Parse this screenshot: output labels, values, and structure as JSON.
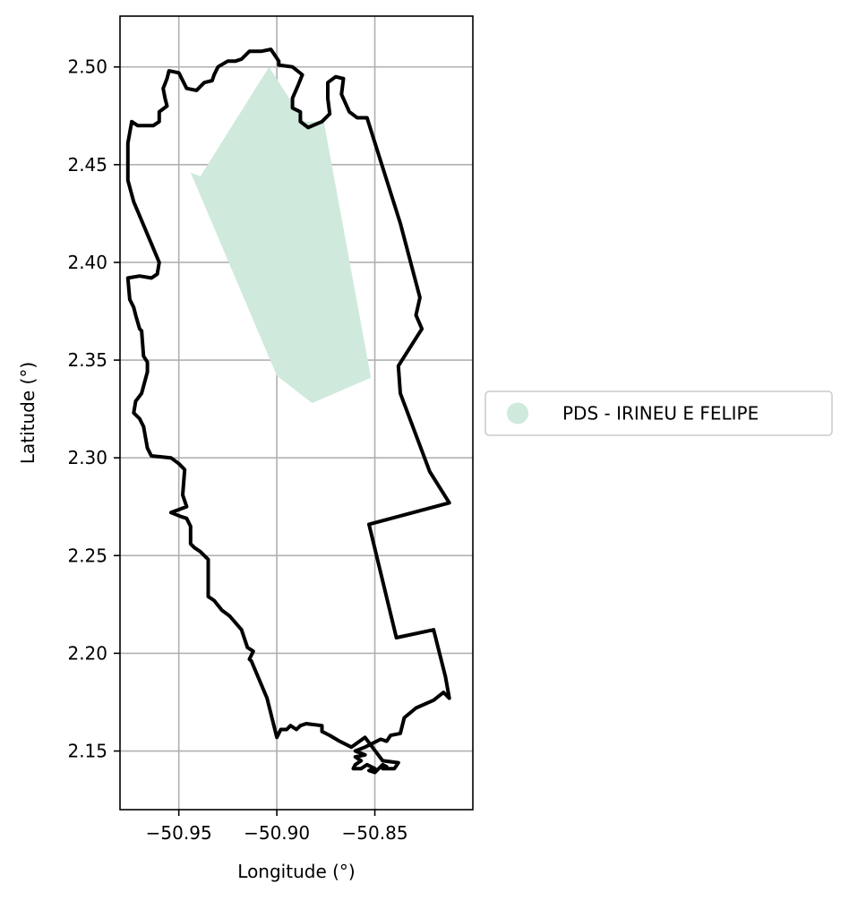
{
  "chart_data": {
    "type": "map",
    "title": "",
    "xlabel": "Longitude (°)",
    "ylabel": "Latitude (°)",
    "xlim": [
      -50.98,
      -50.8
    ],
    "ylim": [
      2.12,
      2.526
    ],
    "grid": true,
    "legend_placement": "center-right, outside plot",
    "x_ticks": [
      {
        "value": -50.95,
        "label": "−50.95"
      },
      {
        "value": -50.9,
        "label": "−50.90"
      },
      {
        "value": -50.85,
        "label": "−50.85"
      }
    ],
    "y_ticks": [
      {
        "value": 2.15,
        "label": "2.15"
      },
      {
        "value": 2.2,
        "label": "2.20"
      },
      {
        "value": 2.25,
        "label": "2.25"
      },
      {
        "value": 2.3,
        "label": "2.30"
      },
      {
        "value": 2.35,
        "label": "2.35"
      },
      {
        "value": 2.4,
        "label": "2.40"
      },
      {
        "value": 2.45,
        "label": "2.45"
      },
      {
        "value": 2.5,
        "label": "2.50"
      }
    ],
    "layers": [
      {
        "name": "PDS - IRINEU E FELIPE",
        "kind": "filled-polygon",
        "color": "#cfeadc",
        "coordinates": [
          [
            -50.904,
            2.5
          ],
          [
            -50.886,
            2.472
          ],
          [
            -50.876,
            2.472
          ],
          [
            -50.852,
            2.341
          ],
          [
            -50.882,
            2.328
          ],
          [
            -50.9,
            2.342
          ],
          [
            -50.944,
            2.446
          ],
          [
            -50.939,
            2.444
          ],
          [
            -50.904,
            2.5
          ]
        ]
      },
      {
        "name": "boundary",
        "kind": "outline",
        "color": "#000000",
        "coordinates": [
          [
            -50.908,
            2.508
          ],
          [
            -50.903,
            2.509
          ],
          [
            -50.899,
            2.503
          ],
          [
            -50.899,
            2.501
          ],
          [
            -50.892,
            2.5
          ],
          [
            -50.887,
            2.496
          ],
          [
            -50.889,
            2.491
          ],
          [
            -50.892,
            2.484
          ],
          [
            -50.892,
            2.479
          ],
          [
            -50.888,
            2.477
          ],
          [
            -50.888,
            2.472
          ],
          [
            -50.884,
            2.469
          ],
          [
            -50.877,
            2.472
          ],
          [
            -50.873,
            2.476
          ],
          [
            -50.874,
            2.484
          ],
          [
            -50.874,
            2.492
          ],
          [
            -50.87,
            2.495
          ],
          [
            -50.866,
            2.494
          ],
          [
            -50.867,
            2.486
          ],
          [
            -50.863,
            2.477
          ],
          [
            -50.859,
            2.474
          ],
          [
            -50.854,
            2.474
          ],
          [
            -50.837,
            2.42
          ],
          [
            -50.827,
            2.382
          ],
          [
            -50.829,
            2.373
          ],
          [
            -50.826,
            2.366
          ],
          [
            -50.838,
            2.347
          ],
          [
            -50.837,
            2.333
          ],
          [
            -50.822,
            2.293
          ],
          [
            -50.812,
            2.277
          ],
          [
            -50.853,
            2.266
          ],
          [
            -50.839,
            2.208
          ],
          [
            -50.82,
            2.212
          ],
          [
            -50.814,
            2.188
          ],
          [
            -50.812,
            2.177
          ],
          [
            -50.815,
            2.18
          ],
          [
            -50.82,
            2.176
          ],
          [
            -50.829,
            2.172
          ],
          [
            -50.835,
            2.167
          ],
          [
            -50.837,
            2.159
          ],
          [
            -50.842,
            2.158
          ],
          [
            -50.844,
            2.155
          ],
          [
            -50.847,
            2.156
          ],
          [
            -50.855,
            2.152
          ],
          [
            -50.86,
            2.15
          ],
          [
            -50.855,
            2.148
          ],
          [
            -50.86,
            2.147
          ],
          [
            -50.857,
            2.145
          ],
          [
            -50.86,
            2.143
          ],
          [
            -50.861,
            2.141
          ],
          [
            -50.857,
            2.141
          ],
          [
            -50.854,
            2.143
          ],
          [
            -50.85,
            2.141
          ],
          [
            -50.853,
            2.14
          ],
          [
            -50.85,
            2.139
          ],
          [
            -50.846,
            2.143
          ],
          [
            -50.844,
            2.142
          ],
          [
            -50.846,
            2.141
          ],
          [
            -50.843,
            2.141
          ],
          [
            -50.84,
            2.141
          ],
          [
            -50.838,
            2.144
          ],
          [
            -50.846,
            2.145
          ],
          [
            -50.849,
            2.149
          ],
          [
            -50.855,
            2.157
          ],
          [
            -50.862,
            2.152
          ],
          [
            -50.868,
            2.155
          ],
          [
            -50.873,
            2.158
          ],
          [
            -50.877,
            2.16
          ],
          [
            -50.877,
            2.163
          ],
          [
            -50.885,
            2.164
          ],
          [
            -50.888,
            2.163
          ],
          [
            -50.89,
            2.161
          ],
          [
            -50.893,
            2.163
          ],
          [
            -50.895,
            2.161
          ],
          [
            -50.898,
            2.161
          ],
          [
            -50.9,
            2.157
          ],
          [
            -50.905,
            2.177
          ],
          [
            -50.913,
            2.196
          ],
          [
            -50.914,
            2.197
          ],
          [
            -50.912,
            2.201
          ],
          [
            -50.915,
            2.203
          ],
          [
            -50.918,
            2.212
          ],
          [
            -50.924,
            2.219
          ],
          [
            -50.928,
            2.222
          ],
          [
            -50.932,
            2.227
          ],
          [
            -50.935,
            2.229
          ],
          [
            -50.935,
            2.248
          ],
          [
            -50.939,
            2.252
          ],
          [
            -50.942,
            2.254
          ],
          [
            -50.944,
            2.256
          ],
          [
            -50.944,
            2.265
          ],
          [
            -50.946,
            2.269
          ],
          [
            -50.949,
            2.27
          ],
          [
            -50.954,
            2.272
          ],
          [
            -50.946,
            2.275
          ],
          [
            -50.948,
            2.281
          ],
          [
            -50.947,
            2.294
          ],
          [
            -50.95,
            2.297
          ],
          [
            -50.954,
            2.3
          ],
          [
            -50.964,
            2.301
          ],
          [
            -50.966,
            2.305
          ],
          [
            -50.968,
            2.316
          ],
          [
            -50.97,
            2.32
          ],
          [
            -50.973,
            2.323
          ],
          [
            -50.972,
            2.329
          ],
          [
            -50.969,
            2.333
          ],
          [
            -50.966,
            2.344
          ],
          [
            -50.966,
            2.349
          ],
          [
            -50.968,
            2.352
          ],
          [
            -50.969,
            2.365
          ],
          [
            -50.97,
            2.366
          ],
          [
            -50.972,
            2.373
          ],
          [
            -50.973,
            2.377
          ],
          [
            -50.975,
            2.381
          ],
          [
            -50.976,
            2.392
          ],
          [
            -50.97,
            2.393
          ],
          [
            -50.964,
            2.392
          ],
          [
            -50.961,
            2.394
          ],
          [
            -50.96,
            2.4
          ],
          [
            -50.965,
            2.412
          ],
          [
            -50.973,
            2.431
          ],
          [
            -50.976,
            2.442
          ],
          [
            -50.976,
            2.461
          ],
          [
            -50.974,
            2.472
          ],
          [
            -50.971,
            2.47
          ],
          [
            -50.963,
            2.47
          ],
          [
            -50.96,
            2.472
          ],
          [
            -50.96,
            2.477
          ],
          [
            -50.956,
            2.48
          ],
          [
            -50.957,
            2.484
          ],
          [
            -50.958,
            2.489
          ],
          [
            -50.956,
            2.494
          ],
          [
            -50.955,
            2.498
          ],
          [
            -50.95,
            2.497
          ],
          [
            -50.946,
            2.489
          ],
          [
            -50.941,
            2.488
          ],
          [
            -50.937,
            2.492
          ],
          [
            -50.933,
            2.493
          ],
          [
            -50.932,
            2.496
          ],
          [
            -50.93,
            2.5
          ],
          [
            -50.925,
            2.503
          ],
          [
            -50.921,
            2.503
          ],
          [
            -50.918,
            2.504
          ],
          [
            -50.914,
            2.508
          ],
          [
            -50.908,
            2.508
          ]
        ]
      }
    ],
    "legend": [
      {
        "label": "PDS - IRINEU E FELIPE",
        "color": "#cfeadc",
        "marker": "circle"
      }
    ]
  }
}
